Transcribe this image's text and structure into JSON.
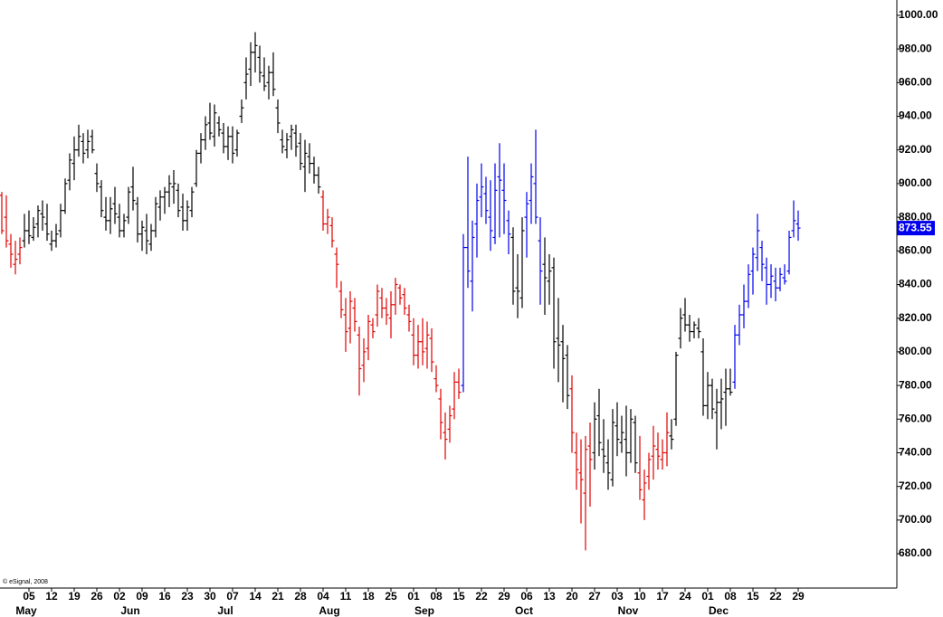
{
  "chart_data": {
    "type": "ohlc",
    "footer": "© eSignal, 2008",
    "xlim": [
      -6.4,
      191.6
    ],
    "ylim": [
      659.6,
      1009.1
    ],
    "yticks": [
      {
        "value": 680,
        "label": "680.00"
      },
      {
        "value": 700,
        "label": "700.00"
      },
      {
        "value": 720,
        "label": "720.00"
      },
      {
        "value": 740,
        "label": "740.00"
      },
      {
        "value": 760,
        "label": "760.00"
      },
      {
        "value": 780,
        "label": "780.00"
      },
      {
        "value": 800,
        "label": "800.00"
      },
      {
        "value": 820,
        "label": "820.00"
      },
      {
        "value": 840,
        "label": "840.00"
      },
      {
        "value": 860,
        "label": "860.00"
      },
      {
        "value": 880,
        "label": "880.00"
      },
      {
        "value": 900,
        "label": "900.00"
      },
      {
        "value": 920,
        "label": "920.00"
      },
      {
        "value": 940,
        "label": "940.00"
      },
      {
        "value": 960,
        "label": "960.00"
      },
      {
        "value": 980,
        "label": "980.00"
      },
      {
        "value": 1000,
        "label": "1000.00"
      }
    ],
    "xticks": [
      {
        "value": 0,
        "label": "05"
      },
      {
        "value": 5,
        "label": "12"
      },
      {
        "value": 10,
        "label": "19"
      },
      {
        "value": 15,
        "label": "26"
      },
      {
        "value": 20,
        "label": "02"
      },
      {
        "value": 25,
        "label": "09"
      },
      {
        "value": 30,
        "label": "16"
      },
      {
        "value": 35,
        "label": "23"
      },
      {
        "value": 40,
        "label": "30"
      },
      {
        "value": 45,
        "label": "07"
      },
      {
        "value": 50,
        "label": "14"
      },
      {
        "value": 55,
        "label": "21"
      },
      {
        "value": 60,
        "label": "28"
      },
      {
        "value": 65,
        "label": "04"
      },
      {
        "value": 70,
        "label": "11"
      },
      {
        "value": 75,
        "label": "18"
      },
      {
        "value": 80,
        "label": "25"
      },
      {
        "value": 85,
        "label": "01"
      },
      {
        "value": 90,
        "label": "08"
      },
      {
        "value": 95,
        "label": "15"
      },
      {
        "value": 100,
        "label": "22"
      },
      {
        "value": 105,
        "label": "29"
      },
      {
        "value": 110,
        "label": "06"
      },
      {
        "value": 115,
        "label": "13"
      },
      {
        "value": 120,
        "label": "20"
      },
      {
        "value": 125,
        "label": "27"
      },
      {
        "value": 130,
        "label": "03"
      },
      {
        "value": 135,
        "label": "10"
      },
      {
        "value": 140,
        "label": "17"
      },
      {
        "value": 145,
        "label": "24"
      },
      {
        "value": 150,
        "label": "01"
      },
      {
        "value": 155,
        "label": "08"
      },
      {
        "value": 160,
        "label": "15"
      },
      {
        "value": 165,
        "label": "22"
      },
      {
        "value": 170,
        "label": "29"
      }
    ],
    "month_ticks": [
      {
        "value": -3,
        "label": "May"
      },
      {
        "value": 20,
        "label": "Jun"
      },
      {
        "value": 41,
        "label": "Jul"
      },
      {
        "value": 64,
        "label": "Aug"
      },
      {
        "value": 85,
        "label": "Sep"
      },
      {
        "value": 107,
        "label": "Oct"
      },
      {
        "value": 130,
        "label": "Nov"
      },
      {
        "value": 150,
        "label": "Dec"
      }
    ],
    "last_price": {
      "value": 873.55,
      "label": "873.55",
      "color": "#0000ee"
    },
    "series": [
      {
        "color": "#e00000",
        "x": [
          -6,
          -5,
          -4,
          -3,
          -2
        ],
        "open": [
          893,
          880,
          864,
          852,
          858
        ],
        "high": [
          895,
          893,
          870,
          866,
          868
        ],
        "low": [
          870,
          862,
          850,
          846,
          852
        ],
        "close": [
          872,
          866,
          858,
          855,
          862
        ]
      },
      {
        "color": "#000000",
        "x": [
          -1,
          0,
          1,
          2,
          3,
          4,
          5,
          6,
          7,
          8,
          9,
          10,
          11,
          12,
          13,
          14,
          15,
          16,
          17,
          18,
          19,
          20,
          21,
          22,
          23,
          24,
          25,
          26,
          27,
          28,
          29,
          30,
          31,
          32,
          33,
          34,
          35,
          36,
          37,
          38,
          39,
          40,
          41,
          42,
          43,
          44,
          45,
          46,
          47,
          48,
          49,
          50,
          51,
          52,
          53,
          54,
          55,
          56,
          57,
          58,
          59,
          60,
          61,
          62,
          63,
          64
        ],
        "open": [
          866,
          872,
          868,
          876,
          882,
          876,
          864,
          866,
          872,
          884,
          902,
          912,
          920,
          925,
          920,
          928,
          906,
          898,
          880,
          878,
          888,
          880,
          872,
          880,
          898,
          888,
          870,
          872,
          864,
          872,
          886,
          892,
          895,
          898,
          896,
          886,
          878,
          884,
          900,
          918,
          926,
          936,
          928,
          936,
          930,
          922,
          928,
          920,
          940,
          960,
          968,
          978,
          975,
          964,
          960,
          966,
          945,
          926,
          920,
          928,
          930,
          924,
          910,
          916,
          912,
          905
        ],
        "high": [
          882,
          884,
          880,
          887,
          890,
          888,
          872,
          876,
          888,
          903,
          918,
          928,
          935,
          930,
          932,
          932,
          912,
          902,
          892,
          892,
          898,
          888,
          882,
          898,
          910,
          892,
          878,
          882,
          876,
          892,
          896,
          898,
          905,
          908,
          900,
          894,
          890,
          898,
          920,
          930,
          940,
          948,
          947,
          940,
          936,
          934,
          934,
          932,
          950,
          975,
          984,
          990,
          982,
          975,
          970,
          978,
          950,
          932,
          930,
          935,
          935,
          930,
          926,
          924,
          916,
          910
        ],
        "low": [
          862,
          864,
          866,
          868,
          872,
          866,
          860,
          862,
          868,
          882,
          896,
          902,
          916,
          912,
          915,
          918,
          895,
          880,
          872,
          870,
          876,
          868,
          868,
          876,
          884,
          865,
          860,
          858,
          860,
          868,
          878,
          882,
          886,
          888,
          880,
          872,
          872,
          880,
          898,
          912,
          920,
          926,
          922,
          928,
          918,
          914,
          912,
          916,
          936,
          950,
          958,
          966,
          960,
          955,
          950,
          952,
          930,
          918,
          915,
          920,
          916,
          908,
          895,
          906,
          900,
          894
        ],
        "close": [
          872,
          869,
          874,
          884,
          880,
          870,
          866,
          870,
          884,
          900,
          914,
          920,
          928,
          918,
          925,
          920,
          900,
          884,
          878,
          885,
          882,
          872,
          878,
          895,
          890,
          870,
          874,
          866,
          872,
          888,
          892,
          895,
          900,
          900,
          884,
          878,
          886,
          895,
          918,
          926,
          935,
          930,
          942,
          932,
          922,
          928,
          918,
          930,
          945,
          965,
          978,
          982,
          966,
          958,
          966,
          956,
          936,
          922,
          926,
          932,
          922,
          912,
          918,
          912,
          905,
          898
        ]
      },
      {
        "color": "#e00000",
        "x": [
          65,
          66,
          67,
          68,
          69,
          70,
          71,
          72,
          73,
          74,
          75,
          76,
          77,
          78,
          79,
          80,
          81,
          82,
          83,
          84,
          85,
          86,
          87,
          88,
          89,
          90,
          91,
          92,
          93,
          94,
          95
        ],
        "open": [
          892,
          876,
          875,
          858,
          836,
          822,
          814,
          826,
          810,
          792,
          802,
          816,
          822,
          832,
          826,
          820,
          828,
          838,
          834,
          822,
          810,
          798,
          806,
          802,
          808,
          784,
          772,
          752,
          754,
          766,
          782
        ],
        "high": [
          896,
          885,
          880,
          862,
          842,
          832,
          836,
          832,
          815,
          808,
          822,
          820,
          840,
          838,
          832,
          836,
          844,
          840,
          838,
          828,
          820,
          816,
          820,
          818,
          814,
          792,
          778,
          764,
          768,
          788,
          790
        ],
        "low": [
          872,
          870,
          862,
          838,
          820,
          800,
          805,
          812,
          774,
          782,
          795,
          808,
          815,
          820,
          816,
          808,
          822,
          828,
          822,
          812,
          792,
          790,
          792,
          790,
          788,
          776,
          748,
          736,
          746,
          760,
          772
        ],
        "close": [
          876,
          880,
          866,
          852,
          825,
          812,
          830,
          818,
          790,
          800,
          818,
          812,
          836,
          826,
          822,
          828,
          840,
          832,
          826,
          818,
          798,
          806,
          800,
          810,
          794,
          780,
          758,
          748,
          762,
          782,
          776
        ]
      },
      {
        "color": "#0000ee",
        "x": [
          96,
          97,
          98,
          99,
          100,
          101,
          102,
          103,
          104,
          105,
          106
        ],
        "open": [
          780,
          862,
          842,
          876,
          892,
          894,
          880,
          868,
          904,
          896,
          878
        ],
        "high": [
          870,
          916,
          878,
          900,
          912,
          904,
          902,
          912,
          924,
          912,
          884
        ],
        "low": [
          776,
          838,
          824,
          856,
          880,
          876,
          860,
          864,
          868,
          870,
          858
        ],
        "close": [
          862,
          848,
          868,
          890,
          898,
          884,
          872,
          896,
          902,
          890,
          870
        ]
      },
      {
        "color": "#000000",
        "x": [
          107,
          108,
          109
        ],
        "open": [
          868,
          838,
          832
        ],
        "high": [
          874,
          858,
          880
        ],
        "low": [
          828,
          820,
          826
        ],
        "close": [
          836,
          836,
          872
        ]
      },
      {
        "color": "#0000ee",
        "x": [
          110,
          111,
          112,
          113
        ],
        "open": [
          880,
          890,
          900,
          866
        ],
        "high": [
          895,
          912,
          932,
          880
        ],
        "low": [
          856,
          876,
          876,
          828
        ],
        "close": [
          888,
          904,
          880,
          848
        ]
      },
      {
        "color": "#000000",
        "x": [
          114,
          115,
          116,
          117,
          118,
          119
        ],
        "open": [
          852,
          842,
          850,
          808,
          806,
          798
        ],
        "high": [
          868,
          858,
          856,
          832,
          816,
          804
        ],
        "low": [
          822,
          828,
          790,
          782,
          770,
          766
        ],
        "close": [
          844,
          848,
          806,
          804,
          796,
          774
        ]
      },
      {
        "color": "#e00000",
        "x": [
          120,
          121,
          122,
          123,
          124
        ],
        "open": [
          778,
          740,
          728,
          716,
          744
        ],
        "high": [
          786,
          752,
          748,
          750,
          758
        ],
        "low": [
          740,
          718,
          698,
          682,
          708
        ],
        "close": [
          752,
          730,
          724,
          742,
          736
        ]
      },
      {
        "color": "#000000",
        "x": [
          125,
          126,
          127,
          128,
          129,
          130,
          131,
          132,
          133,
          134
        ],
        "open": [
          740,
          762,
          742,
          734,
          724,
          756,
          746,
          748,
          740,
          758
        ],
        "high": [
          770,
          778,
          760,
          748,
          766,
          770,
          762,
          768,
          766,
          762
        ],
        "low": [
          730,
          738,
          728,
          718,
          720,
          738,
          740,
          726,
          734,
          728
        ],
        "close": [
          760,
          746,
          738,
          728,
          758,
          748,
          752,
          740,
          760,
          734
        ]
      },
      {
        "color": "#e00000",
        "x": [
          135,
          136,
          137,
          138,
          139,
          140,
          141
        ],
        "open": [
          728,
          712,
          726,
          738,
          742,
          736,
          740
        ],
        "high": [
          750,
          730,
          740,
          756,
          752,
          748,
          764
        ],
        "low": [
          712,
          700,
          718,
          724,
          730,
          730,
          732
        ],
        "close": [
          718,
          722,
          736,
          744,
          738,
          740,
          752
        ]
      },
      {
        "color": "#000000",
        "x": [
          142,
          143,
          144,
          145,
          146,
          147,
          148,
          149,
          150,
          151,
          152,
          153,
          154,
          155
        ],
        "open": [
          750,
          760,
          808,
          822,
          816,
          812,
          814,
          800,
          768,
          780,
          764,
          770,
          776,
          778
        ],
        "high": [
          760,
          800,
          826,
          832,
          822,
          818,
          820,
          808,
          788,
          784,
          778,
          784,
          790,
          790
        ],
        "low": [
          742,
          756,
          802,
          812,
          806,
          808,
          808,
          762,
          760,
          760,
          742,
          754,
          756,
          774
        ],
        "close": [
          748,
          798,
          820,
          816,
          812,
          816,
          812,
          768,
          780,
          766,
          770,
          772,
          778,
          776
        ]
      },
      {
        "color": "#0000ee",
        "x": [
          156,
          157,
          158,
          159,
          160,
          161,
          162,
          163,
          164,
          165,
          166,
          167,
          168,
          169,
          170
        ],
        "open": [
          782,
          810,
          822,
          830,
          848,
          856,
          862,
          850,
          840,
          842,
          838,
          844,
          848,
          872,
          876
        ],
        "high": [
          816,
          828,
          840,
          852,
          862,
          882,
          866,
          856,
          852,
          850,
          850,
          852,
          872,
          890,
          884
        ],
        "low": [
          778,
          804,
          814,
          826,
          834,
          848,
          842,
          828,
          832,
          830,
          836,
          840,
          846,
          868,
          866
        ],
        "close": [
          810,
          822,
          830,
          846,
          858,
          872,
          852,
          840,
          845,
          838,
          846,
          842,
          868,
          878,
          873.55
        ]
      }
    ]
  }
}
